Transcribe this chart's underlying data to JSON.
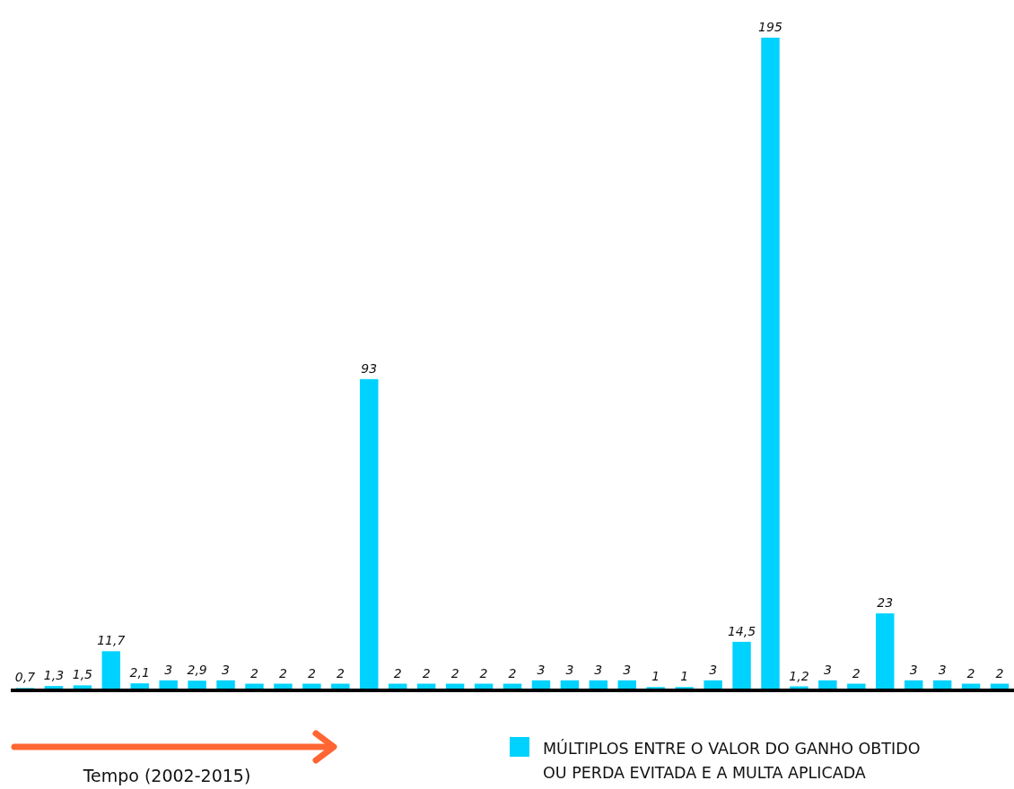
{
  "chart_data": {
    "type": "bar",
    "xlabel": "Tempo (2002-2015)",
    "categories": [
      null,
      null,
      null,
      null,
      null,
      null,
      null,
      null,
      null,
      null,
      null,
      null,
      null,
      null,
      null,
      null,
      null,
      null,
      null,
      null,
      null,
      null,
      null,
      null,
      null,
      null,
      null,
      null,
      null,
      null,
      null,
      null,
      null,
      null,
      null
    ],
    "series": [
      {
        "name": "MÚLTIPLOS ENTRE O VALOR DO GANHO OBTIDO OU PERDA EVITADA E A MULTA APLICADA",
        "color": "#00d2ff",
        "values": [
          0.7,
          1.3,
          1.5,
          11.7,
          2.1,
          3,
          2.9,
          3,
          2,
          2,
          2,
          2,
          93,
          2,
          2,
          2,
          2,
          2,
          3,
          3,
          3,
          3,
          1,
          1,
          3,
          14.5,
          195,
          1.2,
          3,
          2,
          23,
          3,
          3,
          2,
          2
        ],
        "value_labels": [
          "0,7",
          "1,3",
          "1,5",
          "11,7",
          "2,1",
          "3",
          "2,9",
          "3",
          "2",
          "2",
          "2",
          "2",
          "93",
          "2",
          "2",
          "2",
          "2",
          "2",
          "3",
          "3",
          "3",
          "3",
          "1",
          "1",
          "3",
          "14,5",
          "195",
          "1,2",
          "3",
          "2",
          "23",
          "3",
          "3",
          "2",
          "2"
        ]
      }
    ],
    "legend": "bottom right"
  }
}
